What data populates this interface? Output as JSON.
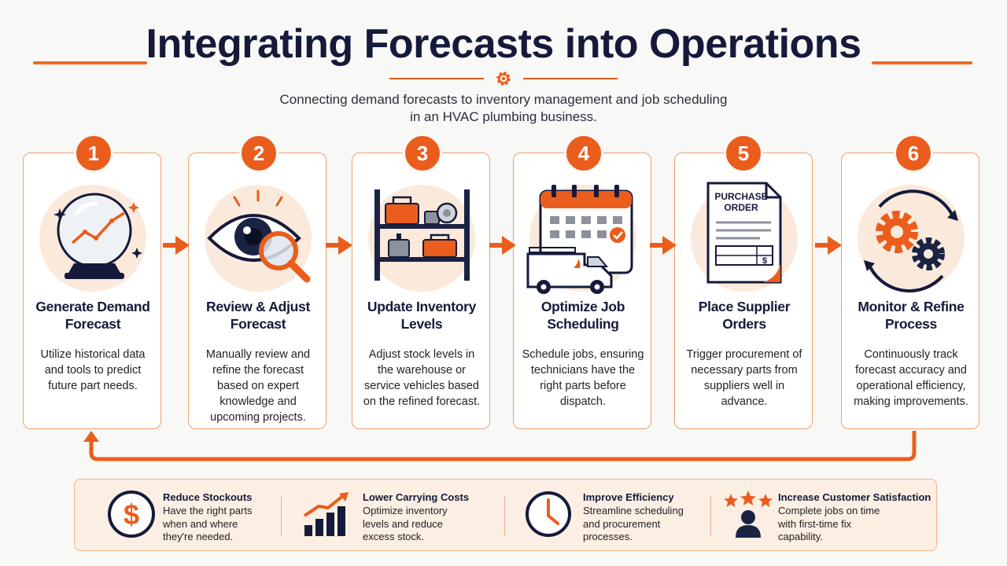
{
  "header": {
    "title": "Integrating Forecasts into Operations",
    "subtitle_line1": "Connecting demand forecasts to inventory management and job scheduling",
    "subtitle_line2": "in an HVAC plumbing business."
  },
  "colors": {
    "accent": "#ea5d1c",
    "navy": "#151a3a",
    "soft": "#fbeee3"
  },
  "steps": [
    {
      "number": "1",
      "title_l1": "Generate Demand",
      "title_l2": "Forecast",
      "desc": [
        "Utilize historical data",
        "and tools to predict",
        "future part needs."
      ],
      "icon": "crystal-ball-chart-icon"
    },
    {
      "number": "2",
      "title_l1": "Review & Adjust",
      "title_l2": "Forecast",
      "desc": [
        "Manually review and",
        "refine the forecast",
        "based on expert",
        "knowledge and",
        "upcoming projects."
      ],
      "icon": "eye-magnifier-icon"
    },
    {
      "number": "3",
      "title_l1": "Update Inventory",
      "title_l2": "Levels",
      "desc": [
        "Adjust stock levels in",
        "the warehouse or",
        "service vehicles based",
        "on the refined forecast."
      ],
      "icon": "shelf-icon"
    },
    {
      "number": "4",
      "title_l1": "Optimize Job",
      "title_l2": "Scheduling",
      "desc": [
        "Schedule jobs, ensuring",
        "technicians have the",
        "right parts before",
        "dispatch."
      ],
      "icon": "calendar-van-icon"
    },
    {
      "number": "5",
      "title_l1": "Place Supplier",
      "title_l2": "Orders",
      "desc": [
        "Trigger procurement of",
        "necessary parts from",
        "suppliers well in",
        "advance."
      ],
      "icon": "purchase-order-icon",
      "doc_l1": "PURCHASE",
      "doc_l2": "ORDER",
      "doc_currency": "$"
    },
    {
      "number": "6",
      "title_l1": "Monitor & Refine",
      "title_l2": "Process",
      "desc": [
        "Continuously track",
        "forecast accuracy and",
        "operational efficiency,",
        "making improvements."
      ],
      "icon": "gears-cycle-icon"
    }
  ],
  "benefits": [
    {
      "title": "Reduce Stockouts",
      "desc": [
        "Have the right parts",
        "when and where",
        "they're needed."
      ],
      "icon": "dollar-icon",
      "icon_text": "$"
    },
    {
      "title": "Lower Carrying Costs",
      "desc": [
        "Optimize inventory",
        "levels and reduce",
        "excess stock."
      ],
      "icon": "bar-chart-up-icon"
    },
    {
      "title": "Improve Efficiency",
      "desc": [
        "Streamline scheduling",
        "and procurement",
        "processes."
      ],
      "icon": "clock-icon"
    },
    {
      "title": "Increase Customer Satisfaction",
      "desc": [
        "Complete jobs on time",
        "with first-time fix",
        "capability."
      ],
      "icon": "stars-customer-icon"
    }
  ]
}
